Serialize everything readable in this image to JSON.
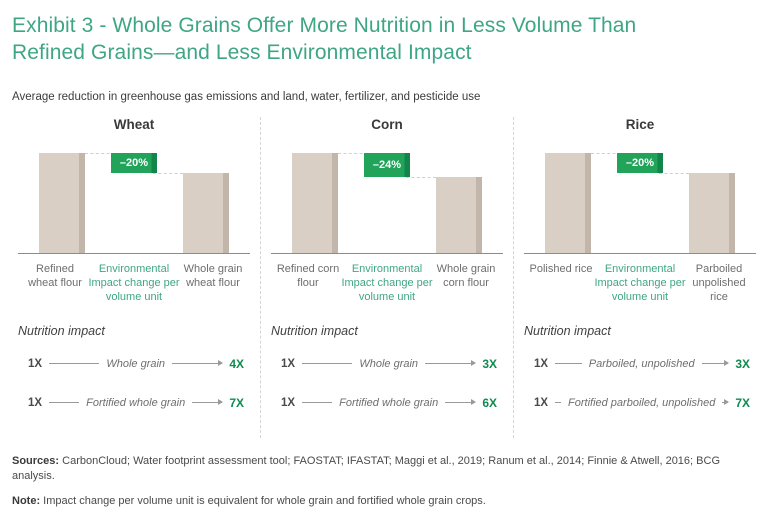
{
  "title": {
    "line1": "Exhibit 3 - Whole Grains Offer More Nutrition in Less Volume Than",
    "line2": "Refined Grains—and Less Environmental Impact"
  },
  "subtitle": "Average reduction in greenhouse gas emissions and land, water, fertilizer, and pesticide use",
  "colors": {
    "title_green": "#3FA685",
    "badge_green": "#21A35A",
    "badge_edge_green": "#12854A",
    "value_green": "#0E8B4F",
    "bar_fill": "#D9CFC5",
    "bar_edge": "#C2B6AA"
  },
  "chart_data": {
    "type": "bar",
    "title": "Average reduction in greenhouse gas emissions and land, water, fertilizer, and pesticide use",
    "ylim": [
      0,
      1
    ],
    "grid": false,
    "panels": [
      {
        "header": "Wheat",
        "bars": [
          {
            "label": "Refined wheat flour",
            "value": 1.0
          },
          {
            "label": "Whole grain wheat flour",
            "value": 0.8
          }
        ],
        "change_label": "–20%",
        "change_pct": -20,
        "middle_label": "Environmental Impact change per volume unit",
        "nutrition": {
          "heading": "Nutrition impact",
          "rows": [
            {
              "from": "1X",
              "label": "Whole grain",
              "to": "4X"
            },
            {
              "from": "1X",
              "label": "Fortified whole grain",
              "to": "7X"
            }
          ]
        }
      },
      {
        "header": "Corn",
        "bars": [
          {
            "label": "Refined corn flour",
            "value": 1.0
          },
          {
            "label": "Whole grain corn flour",
            "value": 0.76
          }
        ],
        "change_label": "–24%",
        "change_pct": -24,
        "middle_label": "Environmental Impact change per volume unit",
        "nutrition": {
          "heading": "Nutrition impact",
          "rows": [
            {
              "from": "1X",
              "label": "Whole grain",
              "to": "3X"
            },
            {
              "from": "1X",
              "label": "Fortified whole grain",
              "to": "6X"
            }
          ]
        }
      },
      {
        "header": "Rice",
        "bars": [
          {
            "label": "Polished rice",
            "value": 1.0
          },
          {
            "label": "Parboiled unpolished rice",
            "value": 0.8
          }
        ],
        "change_label": "–20%",
        "change_pct": -20,
        "middle_label": "Environmental Impact change per volume unit",
        "nutrition": {
          "heading": "Nutrition impact",
          "rows": [
            {
              "from": "1X",
              "label": "Parboiled, unpolished",
              "to": "3X"
            },
            {
              "from": "1X",
              "label": "Fortified parboiled, unpolished",
              "to": "7X"
            }
          ]
        }
      }
    ]
  },
  "footer": {
    "sources_label": "Sources:",
    "sources_text": " CarbonCloud; Water footprint assessment tool; FAOSTAT; IFASTAT; Maggi et al., 2019; Ranum et al., 2014; Finnie & Atwell, 2016; BCG analysis.",
    "note_label": "Note:",
    "note_text": " Impact change per volume unit is equivalent for whole grain and fortified whole grain crops."
  }
}
